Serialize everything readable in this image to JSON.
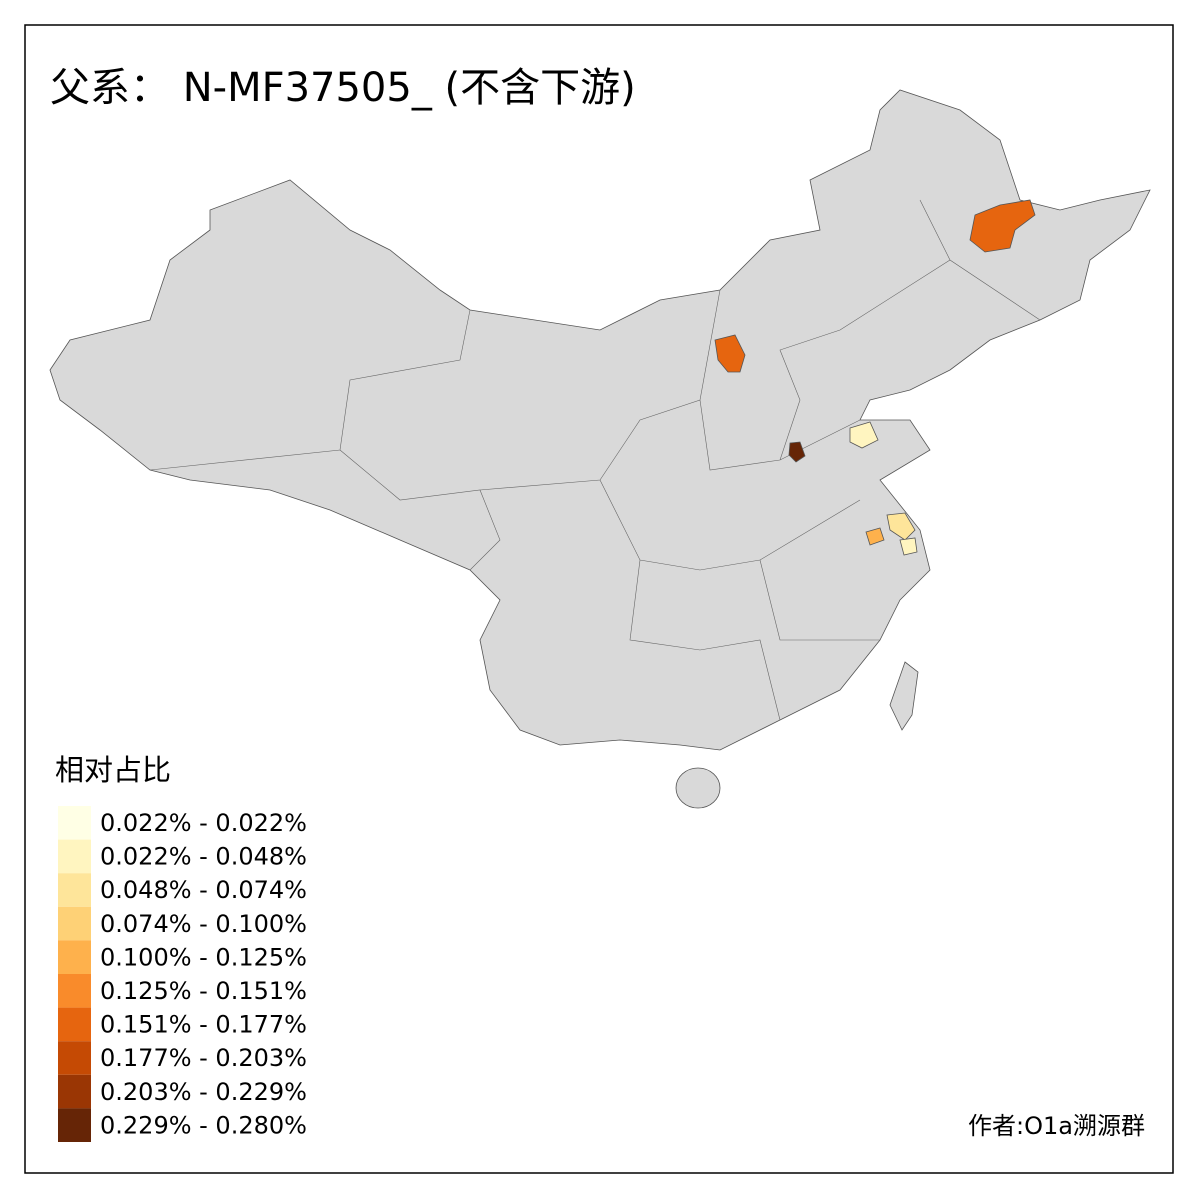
{
  "title": "父系： N-MF37505_ (不含下游)",
  "legend": {
    "title": "相对占比",
    "items": [
      {
        "label": "0.022% - 0.022%",
        "color": "#FFFFE5"
      },
      {
        "label": "0.022% - 0.048%",
        "color": "#FFF5C0"
      },
      {
        "label": "0.048% - 0.074%",
        "color": "#FEE59A"
      },
      {
        "label": "0.074% - 0.100%",
        "color": "#FED176"
      },
      {
        "label": "0.100% - 0.125%",
        "color": "#FEB14C"
      },
      {
        "label": "0.125% - 0.151%",
        "color": "#F98B2B"
      },
      {
        "label": "0.151% - 0.177%",
        "color": "#E6650F"
      },
      {
        "label": "0.177% - 0.203%",
        "color": "#C54A04"
      },
      {
        "label": "0.203% - 0.229%",
        "color": "#9A3604"
      },
      {
        "label": "0.229% - 0.280%",
        "color": "#662506"
      }
    ]
  },
  "credit": "作者:O1a溯源群"
}
